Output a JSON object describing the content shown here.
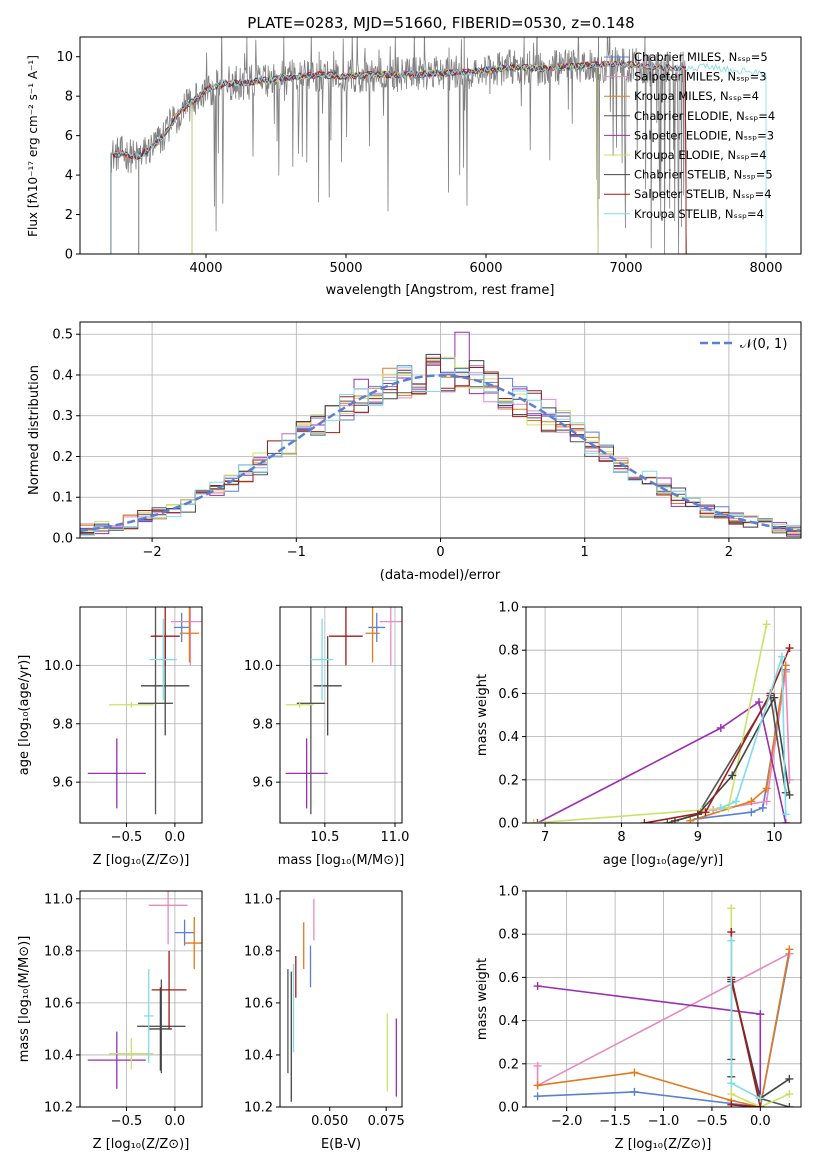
{
  "figure_title": "PLATE=0283, MJD=51660, FIBERID=0530, z=0.148",
  "palette": {
    "series": [
      "#5b7fd6",
      "#e889c2",
      "#e07b1f",
      "#555555",
      "#9a2fb0",
      "#c9e36a",
      "#444444",
      "#a11b1b",
      "#7fdde8"
    ],
    "gray": "#808080",
    "normal": "#5b7fd6"
  },
  "chart_data": [
    {
      "panel": "spectrum",
      "type": "line",
      "xlabel": "wavelength [Angstrom, rest frame]",
      "ylabel": "Flux [fλ10⁻¹⁷ erg cm⁻² s⁻¹ A⁻¹]",
      "xlim": [
        3100,
        8250
      ],
      "ylim": [
        0,
        11
      ],
      "xticks": [
        4000,
        5000,
        6000,
        7000,
        8000
      ],
      "yticks": [
        0,
        2,
        4,
        6,
        8,
        10
      ],
      "legend_position": "top-right",
      "legend": [
        "Chabrier MILES, Nₛₛₚ=5",
        "Salpeter MILES, Nₛₛₚ=3",
        "Kroupa MILES, Nₛₛₚ=4",
        "Chabrier ELODIE, Nₛₛₚ=4",
        "Salpeter ELODIE, Nₛₛₚ=3",
        "Kroupa ELODIE, Nₛₛₚ=4",
        "Chabrier STELIB, Nₛₛₚ=5",
        "Salpeter STELIB, Nₛₛₚ=4",
        "Kroupa STELIB, Nₛₛₚ=4"
      ],
      "continuum": [
        [
          3320,
          5.0
        ],
        [
          3400,
          5.1
        ],
        [
          3500,
          4.9
        ],
        [
          3600,
          5.3
        ],
        [
          3700,
          6.0
        ],
        [
          3800,
          7.1
        ],
        [
          3900,
          7.7
        ],
        [
          4000,
          8.3
        ],
        [
          4100,
          8.6
        ],
        [
          4300,
          8.7
        ],
        [
          4500,
          8.9
        ],
        [
          4800,
          9.1
        ],
        [
          5000,
          9.0
        ],
        [
          5200,
          9.1
        ],
        [
          5500,
          9.1
        ],
        [
          5800,
          9.2
        ],
        [
          6000,
          9.3
        ],
        [
          6200,
          9.5
        ],
        [
          6400,
          9.4
        ],
        [
          6600,
          9.5
        ],
        [
          6800,
          9.6
        ],
        [
          7000,
          9.6
        ],
        [
          7200,
          9.5
        ],
        [
          7400,
          9.4
        ],
        [
          7600,
          9.5
        ],
        [
          7800,
          9.3
        ],
        [
          8000,
          9.2
        ]
      ],
      "model_start_wavelengths": [
        3320,
        3320,
        3320,
        3520,
        3900,
        3900,
        3320,
        3320,
        3320
      ],
      "model_end_wavelengths": [
        7430,
        7430,
        7430,
        6800,
        6800,
        6800,
        7430,
        7430,
        8000
      ],
      "data_range": [
        3320,
        7430
      ]
    },
    {
      "panel": "residual_histogram",
      "type": "line",
      "xlabel": "(data-model)/error",
      "ylabel": "Normed distribution",
      "xlim": [
        -2.5,
        2.5
      ],
      "ylim": [
        0,
        0.53
      ],
      "xticks": [
        -2,
        -1,
        0,
        1,
        2
      ],
      "xticklabels": [
        "−2",
        "−1",
        "0",
        "1",
        "2"
      ],
      "yticks": [
        0.0,
        0.1,
        0.2,
        0.3,
        0.4,
        0.5
      ],
      "yticklabels": [
        "0.0",
        "0.1",
        "0.2",
        "0.3",
        "0.4",
        "0.5"
      ],
      "legend_position": "top-right",
      "legend": [
        "𝒩(0, 1)"
      ],
      "bin_width": 0.1,
      "grid": true
    },
    {
      "panel": "age_vs_Z",
      "type": "scatter",
      "xlabel": "Z [log₁₀(Z/Z⊙)]",
      "ylabel": "age  [log₁₀(age/yr)]",
      "xlim": [
        -0.98,
        0.28
      ],
      "ylim": [
        9.46,
        10.2
      ],
      "xticks": [
        -0.5,
        0.0
      ],
      "xticklabels": [
        "−0.5",
        "0.0"
      ],
      "yticks": [
        9.6,
        9.8,
        10.0
      ],
      "yticklabels": [
        "9.6",
        "9.8",
        "10.0"
      ],
      "grid": true,
      "points": [
        {
          "x": 0.07,
          "y": 10.13,
          "xerr": 0.08,
          "yerr": 0.05
        },
        {
          "x": 0.16,
          "y": 10.15,
          "xerr": 0.2,
          "yerr": 0.15
        },
        {
          "x": 0.15,
          "y": 10.11,
          "xerr": 0.1,
          "yerr": 0.1
        },
        {
          "x": -0.2,
          "y": 9.87,
          "xerr": 0.18,
          "yerr": 0.38
        },
        {
          "x": -0.6,
          "y": 9.63,
          "xerr": 0.3,
          "yerr": 0.12
        },
        {
          "x": -0.45,
          "y": 9.865,
          "xerr": 0.23,
          "yerr": 0.01
        },
        {
          "x": -0.1,
          "y": 9.93,
          "xerr": 0.25,
          "yerr": 0.17
        },
        {
          "x": -0.1,
          "y": 10.1,
          "xerr": 0.15,
          "yerr": 0.1
        },
        {
          "x": -0.12,
          "y": 10.02,
          "xerr": 0.14,
          "yerr": 0.14
        }
      ]
    },
    {
      "panel": "age_vs_mass",
      "type": "scatter",
      "xlabel": "mass [log₁₀(M/M⊙)]",
      "ylabel": "",
      "xlim": [
        10.18,
        11.05
      ],
      "ylim": [
        9.46,
        10.2
      ],
      "xticks": [
        10.5,
        11.0
      ],
      "xticklabels": [
        "10.5",
        "11.0"
      ],
      "yticks": [
        9.6,
        9.8,
        10.0
      ],
      "yticklabels": [
        "9.6",
        "9.8",
        "10.0"
      ],
      "grid": true,
      "points": [
        {
          "x": 10.87,
          "y": 10.13,
          "xerr": 0.06,
          "yerr": 0.05
        },
        {
          "x": 10.97,
          "y": 10.15,
          "xerr": 0.08,
          "yerr": 0.15
        },
        {
          "x": 10.84,
          "y": 10.11,
          "xerr": 0.05,
          "yerr": 0.1
        },
        {
          "x": 10.4,
          "y": 9.87,
          "xerr": 0.1,
          "yerr": 0.38
        },
        {
          "x": 10.37,
          "y": 9.63,
          "xerr": 0.15,
          "yerr": 0.12
        },
        {
          "x": 10.32,
          "y": 9.865,
          "xerr": 0.1,
          "yerr": 0.01
        },
        {
          "x": 10.52,
          "y": 9.93,
          "xerr": 0.1,
          "yerr": 0.17
        },
        {
          "x": 10.65,
          "y": 10.1,
          "xerr": 0.12,
          "yerr": 0.1
        },
        {
          "x": 10.48,
          "y": 10.02,
          "xerr": 0.08,
          "yerr": 0.14
        }
      ]
    },
    {
      "panel": "weight_vs_age",
      "type": "line",
      "xlabel": "age  [log₁₀(age/yr)]",
      "ylabel": "mass weight",
      "xlim": [
        6.75,
        10.35
      ],
      "ylim": [
        0,
        1
      ],
      "xticks": [
        7,
        8,
        9,
        10
      ],
      "yticks": [
        0.0,
        0.2,
        0.4,
        0.6,
        0.8,
        1.0
      ],
      "yticklabels": [
        "0.0",
        "0.2",
        "0.4",
        "0.6",
        "0.8",
        "1.0"
      ],
      "grid": true,
      "series": [
        {
          "points": [
            [
              9.0,
              0.02
            ],
            [
              9.7,
              0.05
            ],
            [
              9.85,
              0.07
            ],
            [
              10.15,
              0.71
            ]
          ]
        },
        {
          "points": [
            [
              9.2,
              0.06
            ],
            [
              9.9,
              0.1
            ],
            [
              10.15,
              0.7
            ],
            [
              10.2,
              0.2
            ]
          ]
        },
        {
          "points": [
            [
              8.9,
              0.01
            ],
            [
              9.7,
              0.1
            ],
            [
              9.9,
              0.16
            ],
            [
              10.15,
              0.73
            ]
          ]
        },
        {
          "points": [
            [
              8.6,
              0.0
            ],
            [
              9.0,
              0.04
            ],
            [
              9.95,
              0.59
            ],
            [
              10.15,
              0.14
            ]
          ]
        },
        {
          "points": [
            [
              6.9,
              0.0
            ],
            [
              9.3,
              0.44
            ],
            [
              9.8,
              0.56
            ],
            [
              10.15,
              0.0
            ]
          ]
        },
        {
          "points": [
            [
              6.85,
              0.0
            ],
            [
              9.05,
              0.06
            ],
            [
              9.4,
              0.07
            ],
            [
              9.9,
              0.92
            ]
          ]
        },
        {
          "points": [
            [
              8.7,
              0.01
            ],
            [
              9.0,
              0.04
            ],
            [
              9.45,
              0.22
            ],
            [
              10.0,
              0.58
            ],
            [
              10.2,
              0.13
            ]
          ]
        },
        {
          "points": [
            [
              8.3,
              0.0
            ],
            [
              9.1,
              0.05
            ],
            [
              9.95,
              0.6
            ],
            [
              10.2,
              0.81
            ]
          ]
        },
        {
          "points": [
            [
              9.3,
              0.07
            ],
            [
              9.5,
              0.1
            ],
            [
              10.1,
              0.77
            ],
            [
              10.15,
              0.04
            ]
          ]
        }
      ]
    },
    {
      "panel": "mass_vs_Z",
      "type": "scatter",
      "xlabel": "Z [log₁₀(Z/Z⊙)]",
      "ylabel": "mass [log₁₀(M/M⊙)]",
      "xlim": [
        -0.98,
        0.28
      ],
      "ylim": [
        10.2,
        11.03
      ],
      "xticks": [
        -0.5,
        0.0
      ],
      "xticklabels": [
        "−0.5",
        "0.0"
      ],
      "yticks": [
        10.2,
        10.4,
        10.6,
        10.8,
        11.0
      ],
      "yticklabels": [
        "10.2",
        "10.4",
        "10.6",
        "10.8",
        "11.0"
      ],
      "grid": true,
      "points": [
        {
          "x": 0.1,
          "y": 10.87,
          "xerr": 0.1,
          "yerr": 0.05
        },
        {
          "x": -0.07,
          "y": 10.975,
          "xerr": 0.2,
          "yerr": 0.15
        },
        {
          "x": 0.2,
          "y": 10.83,
          "xerr": 0.1,
          "yerr": 0.1
        },
        {
          "x": -0.14,
          "y": 10.51,
          "xerr": 0.25,
          "yerr": 0.18
        },
        {
          "x": -0.6,
          "y": 10.38,
          "xerr": 0.3,
          "yerr": 0.11
        },
        {
          "x": -0.45,
          "y": 10.405,
          "xerr": 0.23,
          "yerr": 0.06
        },
        {
          "x": -0.15,
          "y": 10.5,
          "xerr": 0.12,
          "yerr": 0.16
        },
        {
          "x": -0.06,
          "y": 10.65,
          "xerr": 0.18,
          "yerr": 0.15
        },
        {
          "x": -0.27,
          "y": 10.55,
          "xerr": 0.05,
          "yerr": 0.18
        }
      ]
    },
    {
      "panel": "mass_vs_EBV",
      "type": "scatter",
      "xlabel": "E(B-V)",
      "ylabel": "",
      "xlim": [
        0.028,
        0.082
      ],
      "ylim": [
        10.2,
        11.03
      ],
      "xticks": [
        0.05,
        0.075
      ],
      "xticklabels": [
        "0.050",
        "0.075"
      ],
      "yticks": [
        10.2,
        10.4,
        10.6,
        10.8,
        11.0
      ],
      "yticklabels": [
        "10.2",
        "10.4",
        "10.6",
        "10.8",
        "11.0"
      ],
      "grid": false,
      "points": [
        {
          "x": 0.0415,
          "y": 10.74,
          "xerr": 0.0,
          "yerr": 0.08
        },
        {
          "x": 0.043,
          "y": 10.92,
          "xerr": 0.0,
          "yerr": 0.08
        },
        {
          "x": 0.0385,
          "y": 10.82,
          "xerr": 0.0,
          "yerr": 0.09
        },
        {
          "x": 0.0315,
          "y": 10.53,
          "xerr": 0.0,
          "yerr": 0.2
        },
        {
          "x": 0.0795,
          "y": 10.39,
          "xerr": 0.0,
          "yerr": 0.15
        },
        {
          "x": 0.0755,
          "y": 10.41,
          "xerr": 0.0,
          "yerr": 0.15
        },
        {
          "x": 0.033,
          "y": 10.47,
          "xerr": 0.0,
          "yerr": 0.25
        },
        {
          "x": 0.035,
          "y": 10.7,
          "xerr": 0.0,
          "yerr": 0.08
        },
        {
          "x": 0.034,
          "y": 10.58,
          "xerr": 0.0,
          "yerr": 0.17
        }
      ]
    },
    {
      "panel": "weight_vs_Z",
      "type": "line",
      "xlabel": "Z [log₁₀(Z/Z⊙)]",
      "ylabel": "mass weight",
      "xlim": [
        -2.42,
        0.42
      ],
      "ylim": [
        0,
        1
      ],
      "xticks": [
        -2.0,
        -1.5,
        -1.0,
        -0.5,
        0.0
      ],
      "xticklabels": [
        "−2.0",
        "−1.5",
        "−1.0",
        "−0.5",
        "0.0"
      ],
      "yticks": [
        0.0,
        0.2,
        0.4,
        0.6,
        0.8,
        1.0
      ],
      "yticklabels": [
        "0.0",
        "0.2",
        "0.4",
        "0.6",
        "0.8",
        "1.0"
      ],
      "grid": true,
      "series": [
        {
          "points": [
            [
              -2.3,
              0.05
            ],
            [
              -1.3,
              0.07
            ],
            [
              0.0,
              0.0
            ],
            [
              0.3,
              0.71
            ]
          ]
        },
        {
          "points": [
            [
              -2.3,
              0.19
            ],
            [
              -2.3,
              0.1
            ],
            [
              0.3,
              0.71
            ]
          ]
        },
        {
          "points": [
            [
              -2.3,
              0.1
            ],
            [
              -1.3,
              0.16
            ],
            [
              -0.3,
              0.03
            ],
            [
              0.0,
              0.0
            ],
            [
              0.3,
              0.73
            ]
          ]
        },
        {
          "points": [
            [
              -0.3,
              0.14
            ],
            [
              -0.3,
              0.58
            ],
            [
              0.0,
              0.04
            ],
            [
              0.3,
              0.0
            ]
          ]
        },
        {
          "points": [
            [
              -2.3,
              0.56
            ],
            [
              0.0,
              0.43
            ],
            [
              0.0,
              0.0
            ]
          ]
        },
        {
          "points": [
            [
              -0.3,
              0.92
            ],
            [
              -0.3,
              0.06
            ],
            [
              0.0,
              0.0
            ],
            [
              0.3,
              0.06
            ]
          ]
        },
        {
          "points": [
            [
              -0.3,
              0.22
            ],
            [
              -0.3,
              0.59
            ],
            [
              0.0,
              0.04
            ],
            [
              0.3,
              0.13
            ]
          ]
        },
        {
          "points": [
            [
              -0.3,
              0.81
            ],
            [
              -0.3,
              0.6
            ],
            [
              0.0,
              0.0
            ],
            [
              -0.3,
              0.01
            ]
          ]
        },
        {
          "points": [
            [
              -0.3,
              0.77
            ],
            [
              -0.3,
              0.11
            ],
            [
              0.0,
              0.04
            ]
          ]
        }
      ]
    }
  ]
}
